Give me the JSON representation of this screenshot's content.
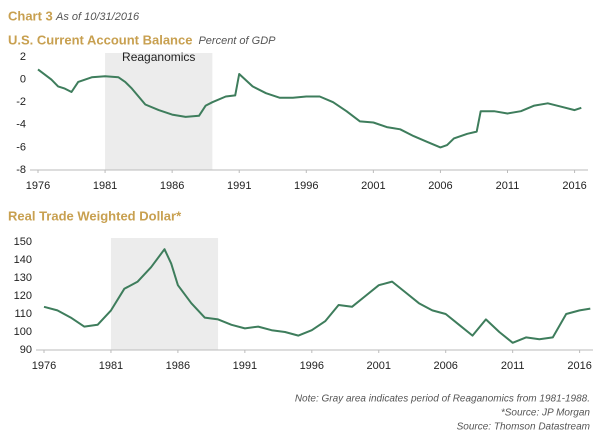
{
  "header": {
    "label": "Chart 3",
    "date": "As of 10/31/2016"
  },
  "notes": [
    "Note: Gray area indicates period of Reaganomics from 1981-1988.",
    "*Source: JP Morgan",
    "Source: Thomson Datastream"
  ],
  "chart_data": [
    {
      "type": "line",
      "title": "U.S. Current Account Balance",
      "subtitle": "Percent of GDP",
      "annotation": "Reaganomics",
      "shade": [
        1981,
        1989
      ],
      "x": [
        1976,
        1977,
        1977.5,
        1978,
        1978.5,
        1979,
        1980,
        1981,
        1982,
        1982.5,
        1983,
        1984,
        1985,
        1986,
        1987,
        1988,
        1988.5,
        1989,
        1990,
        1990.7,
        1991,
        1992,
        1993,
        1994,
        1995,
        1996,
        1997,
        1998,
        1999,
        2000,
        2001,
        2002,
        2003,
        2004,
        2005,
        2006,
        2006.5,
        2007,
        2008,
        2008.7,
        2009,
        2010,
        2011,
        2012,
        2013,
        2014,
        2015,
        2016,
        2016.5
      ],
      "series": [
        {
          "name": "U.S. Current Account Balance",
          "color": "#3e7d5c",
          "values": [
            0.9,
            0,
            -0.6,
            -0.8,
            -1.1,
            -0.2,
            0.2,
            0.3,
            0.2,
            -0.2,
            -0.8,
            -2.2,
            -2.7,
            -3.1,
            -3.3,
            -3.2,
            -2.3,
            -2.0,
            -1.5,
            -1.4,
            0.5,
            -0.6,
            -1.2,
            -1.6,
            -1.6,
            -1.5,
            -1.5,
            -2.0,
            -2.8,
            -3.7,
            -3.8,
            -4.2,
            -4.4,
            -5.0,
            -5.5,
            -6.0,
            -5.8,
            -5.2,
            -4.8,
            -4.6,
            -2.8,
            -2.8,
            -3.0,
            -2.8,
            -2.3,
            -2.1,
            -2.4,
            -2.7,
            -2.5
          ]
        }
      ],
      "xlim": [
        1976,
        2017
      ],
      "xticks": [
        1976,
        1981,
        1986,
        1991,
        1996,
        2001,
        2006,
        2011,
        2016
      ],
      "ylim": [
        -8,
        2
      ],
      "yticks": [
        -8,
        -6,
        -4,
        -2,
        0,
        2
      ]
    },
    {
      "type": "line",
      "title": "Real Trade Weighted Dollar*",
      "shade": [
        1981,
        1989
      ],
      "x": [
        1976,
        1977,
        1978,
        1979,
        1980,
        1981,
        1982,
        1983,
        1984,
        1985,
        1985.5,
        1986,
        1987,
        1988,
        1989,
        1990,
        1991,
        1992,
        1993,
        1994,
        1995,
        1996,
        1997,
        1998,
        1999,
        2000,
        2001,
        2002,
        2003,
        2004,
        2005,
        2006,
        2007,
        2008,
        2009,
        2010,
        2011,
        2012,
        2013,
        2014,
        2015,
        2016,
        2016.8
      ],
      "series": [
        {
          "name": "Real Trade Weighted Dollar",
          "color": "#3e7d5c",
          "values": [
            114,
            112,
            108,
            103,
            104,
            112,
            124,
            128,
            136,
            146,
            138,
            126,
            116,
            108,
            107,
            104,
            102,
            103,
            101,
            100,
            98,
            101,
            106,
            115,
            114,
            120,
            126,
            128,
            122,
            116,
            112,
            110,
            104,
            98,
            107,
            100,
            94,
            97,
            96,
            97,
            110,
            112,
            113
          ]
        }
      ],
      "xlim": [
        1976,
        2017
      ],
      "xticks": [
        1976,
        1981,
        1986,
        1991,
        1996,
        2001,
        2006,
        2011,
        2016
      ],
      "ylim": [
        90,
        150
      ],
      "yticks": [
        90,
        100,
        110,
        120,
        130,
        140,
        150
      ]
    }
  ]
}
